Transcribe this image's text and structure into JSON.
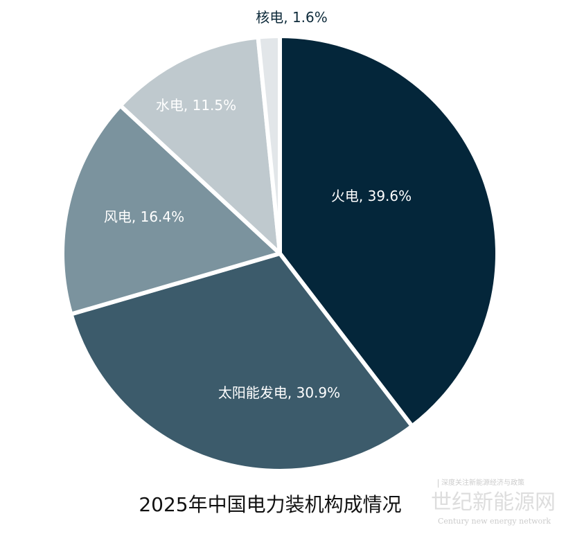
{
  "chart_data": {
    "type": "pie",
    "title": "2025年中国电力装机构成情况",
    "start": "top",
    "direction": "clockwise",
    "slices": [
      {
        "label": "火电",
        "value": 39.6,
        "display": "火电, 39.6%",
        "color": "#04263a",
        "text_color": "#ffffff"
      },
      {
        "label": "太阳能发电",
        "value": 30.9,
        "display": "太阳能发电, 30.9%",
        "color": "#3c5b6b",
        "text_color": "#ffffff"
      },
      {
        "label": "风电",
        "value": 16.4,
        "display": "风电, 16.4%",
        "color": "#7b939e",
        "text_color": "#ffffff"
      },
      {
        "label": "水电",
        "value": 11.5,
        "display": "水电, 11.5%",
        "color": "#bfc9ce",
        "text_color": "#ffffff"
      },
      {
        "label": "核电",
        "value": 1.6,
        "display": "核电, 1.6%",
        "color": "#e2e6e9",
        "text_color": "#0d2a3a"
      }
    ]
  },
  "watermark": {
    "tagline": "深度关注新能源经济与政策",
    "name": "世纪新能源网",
    "english": "Century new energy network"
  }
}
